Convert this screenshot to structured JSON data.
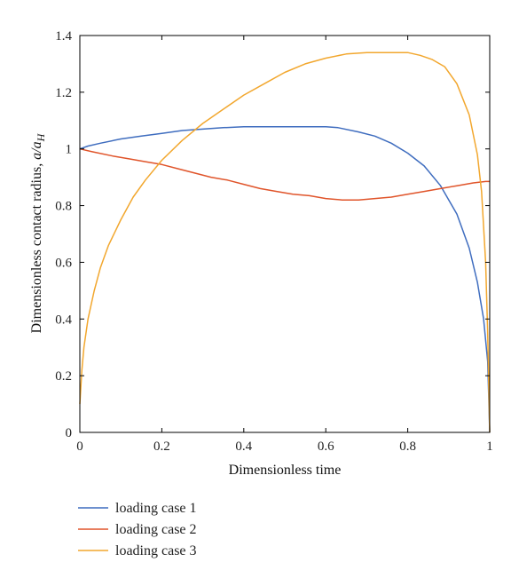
{
  "chart_data": {
    "type": "line",
    "xlabel": "Dimensionless time",
    "ylabel": "Dimensionless contact radius, a/aH",
    "ylabel_parts": {
      "text": "Dimensionless contact radius, ",
      "var": "a/a",
      "sub": "H"
    },
    "xlim": [
      0,
      1
    ],
    "ylim": [
      0,
      1.4
    ],
    "xticks": [
      0,
      0.2,
      0.4,
      0.6,
      0.8,
      1
    ],
    "xtick_labels": [
      "0",
      "0.2",
      "0.4",
      "0.6",
      "0.8",
      "1"
    ],
    "yticks": [
      0,
      0.2,
      0.4,
      0.6,
      0.8,
      1,
      1.2,
      1.4
    ],
    "ytick_labels": [
      "0",
      "0.2",
      "0.4",
      "0.6",
      "0.8",
      "1",
      "1.2",
      "1.4"
    ],
    "grid": false,
    "legend_position": "bottom-left, below plot",
    "series": [
      {
        "name": "loading case 1",
        "color": "#3F6DBF",
        "x": [
          0,
          0.02,
          0.05,
          0.1,
          0.15,
          0.2,
          0.25,
          0.3,
          0.35,
          0.4,
          0.5,
          0.6,
          0.63,
          0.68,
          0.72,
          0.76,
          0.8,
          0.84,
          0.88,
          0.92,
          0.95,
          0.97,
          0.985,
          0.995,
          1.0
        ],
        "y": [
          1.0,
          1.01,
          1.02,
          1.035,
          1.045,
          1.055,
          1.065,
          1.07,
          1.075,
          1.078,
          1.078,
          1.078,
          1.075,
          1.06,
          1.045,
          1.02,
          0.985,
          0.94,
          0.87,
          0.77,
          0.65,
          0.53,
          0.4,
          0.25,
          0.0
        ]
      },
      {
        "name": "loading case 2",
        "color": "#E0542A",
        "x": [
          0,
          0.03,
          0.08,
          0.12,
          0.16,
          0.2,
          0.24,
          0.28,
          0.32,
          0.36,
          0.4,
          0.44,
          0.48,
          0.52,
          0.56,
          0.6,
          0.64,
          0.68,
          0.72,
          0.76,
          0.8,
          0.84,
          0.88,
          0.92,
          0.96,
          0.99,
          1.0
        ],
        "y": [
          1.0,
          0.99,
          0.975,
          0.965,
          0.955,
          0.945,
          0.93,
          0.915,
          0.9,
          0.89,
          0.875,
          0.86,
          0.85,
          0.84,
          0.835,
          0.825,
          0.82,
          0.82,
          0.825,
          0.83,
          0.84,
          0.85,
          0.86,
          0.87,
          0.88,
          0.885,
          0.885
        ]
      },
      {
        "name": "loading case 3",
        "color": "#F2A72E",
        "x": [
          0,
          0.005,
          0.01,
          0.02,
          0.035,
          0.05,
          0.07,
          0.1,
          0.13,
          0.16,
          0.2,
          0.25,
          0.3,
          0.35,
          0.4,
          0.45,
          0.5,
          0.55,
          0.6,
          0.65,
          0.7,
          0.75,
          0.8,
          0.83,
          0.86,
          0.89,
          0.92,
          0.95,
          0.97,
          0.98,
          0.99,
          0.995,
          1.0
        ],
        "y": [
          0.1,
          0.22,
          0.3,
          0.4,
          0.5,
          0.58,
          0.66,
          0.75,
          0.83,
          0.89,
          0.96,
          1.03,
          1.09,
          1.14,
          1.19,
          1.23,
          1.27,
          1.3,
          1.32,
          1.335,
          1.34,
          1.34,
          1.34,
          1.33,
          1.315,
          1.29,
          1.23,
          1.12,
          0.98,
          0.85,
          0.6,
          0.35,
          0.0
        ]
      }
    ]
  }
}
